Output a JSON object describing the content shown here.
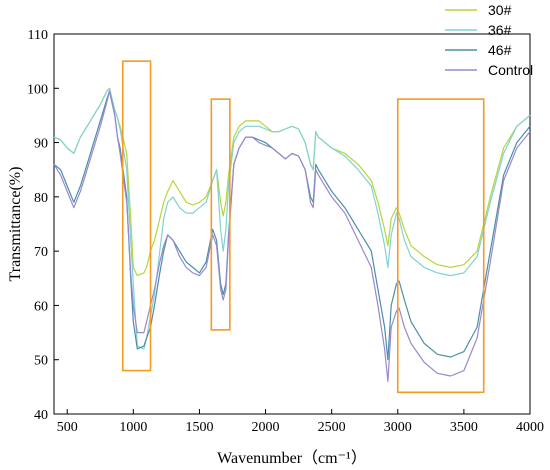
{
  "chart_data": {
    "type": "line",
    "xlabel": "Wavenumber（cm⁻¹）",
    "ylabel": "Transmittance(%)",
    "xlim": [
      400,
      4000
    ],
    "ylim": [
      40,
      110
    ],
    "xticks": [
      500,
      1000,
      1500,
      2000,
      2500,
      3000,
      3500,
      4000
    ],
    "yticks": [
      40,
      50,
      60,
      70,
      80,
      90,
      100,
      110
    ],
    "grid": false,
    "legend_position": "top-right",
    "series": [
      {
        "name": "30#",
        "color": "#b5d63a",
        "points": [
          [
            400,
            91
          ],
          [
            450,
            90.5
          ],
          [
            500,
            89
          ],
          [
            550,
            88
          ],
          [
            600,
            91
          ],
          [
            650,
            93
          ],
          [
            700,
            95
          ],
          [
            750,
            97
          ],
          [
            800,
            99.5
          ],
          [
            820,
            100
          ],
          [
            860,
            96
          ],
          [
            880,
            94.5
          ],
          [
            900,
            93
          ],
          [
            950,
            88
          ],
          [
            980,
            76
          ],
          [
            1000,
            67
          ],
          [
            1030,
            65.5
          ],
          [
            1080,
            66
          ],
          [
            1100,
            67
          ],
          [
            1130,
            70
          ],
          [
            1160,
            72
          ],
          [
            1200,
            76
          ],
          [
            1230,
            79
          ],
          [
            1260,
            81
          ],
          [
            1300,
            83
          ],
          [
            1350,
            81
          ],
          [
            1400,
            79
          ],
          [
            1450,
            78.5
          ],
          [
            1500,
            79
          ],
          [
            1550,
            80
          ],
          [
            1600,
            83
          ],
          [
            1630,
            85
          ],
          [
            1660,
            79
          ],
          [
            1680,
            76.5
          ],
          [
            1700,
            79
          ],
          [
            1720,
            84
          ],
          [
            1760,
            91
          ],
          [
            1800,
            93
          ],
          [
            1850,
            94
          ],
          [
            1900,
            94
          ],
          [
            1950,
            94
          ],
          [
            2000,
            93
          ],
          [
            2050,
            92
          ],
          [
            2100,
            92
          ],
          [
            2150,
            92.5
          ],
          [
            2200,
            93
          ],
          [
            2250,
            92.5
          ],
          [
            2300,
            90
          ],
          [
            2340,
            86
          ],
          [
            2360,
            85
          ],
          [
            2380,
            92
          ],
          [
            2400,
            91
          ],
          [
            2500,
            89
          ],
          [
            2600,
            88
          ],
          [
            2700,
            86
          ],
          [
            2800,
            83
          ],
          [
            2850,
            79
          ],
          [
            2900,
            74
          ],
          [
            2925,
            71
          ],
          [
            2950,
            76
          ],
          [
            2990,
            78
          ],
          [
            3010,
            77
          ],
          [
            3050,
            74
          ],
          [
            3100,
            71
          ],
          [
            3200,
            69
          ],
          [
            3300,
            67.5
          ],
          [
            3400,
            67
          ],
          [
            3500,
            67.5
          ],
          [
            3600,
            70
          ],
          [
            3700,
            80
          ],
          [
            3800,
            89
          ],
          [
            3900,
            93
          ],
          [
            4000,
            95
          ]
        ]
      },
      {
        "name": "36#",
        "color": "#7fd3d3",
        "points": [
          [
            400,
            91
          ],
          [
            450,
            90.5
          ],
          [
            500,
            89
          ],
          [
            550,
            88
          ],
          [
            600,
            91
          ],
          [
            650,
            93
          ],
          [
            700,
            95
          ],
          [
            750,
            97
          ],
          [
            800,
            99.5
          ],
          [
            820,
            100
          ],
          [
            860,
            96
          ],
          [
            880,
            94.5
          ],
          [
            900,
            92.5
          ],
          [
            950,
            85
          ],
          [
            980,
            72
          ],
          [
            1000,
            64
          ],
          [
            1030,
            52.5
          ],
          [
            1080,
            52
          ],
          [
            1100,
            54
          ],
          [
            1130,
            58
          ],
          [
            1160,
            62
          ],
          [
            1200,
            70
          ],
          [
            1230,
            76
          ],
          [
            1260,
            79
          ],
          [
            1300,
            80
          ],
          [
            1350,
            78
          ],
          [
            1400,
            77
          ],
          [
            1450,
            77
          ],
          [
            1500,
            78
          ],
          [
            1550,
            79
          ],
          [
            1600,
            83
          ],
          [
            1630,
            85
          ],
          [
            1660,
            74
          ],
          [
            1680,
            70
          ],
          [
            1700,
            74
          ],
          [
            1720,
            82
          ],
          [
            1760,
            90
          ],
          [
            1800,
            92
          ],
          [
            1850,
            93
          ],
          [
            1900,
            93
          ],
          [
            1950,
            93
          ],
          [
            2000,
            92.5
          ],
          [
            2050,
            92
          ],
          [
            2100,
            92
          ],
          [
            2150,
            92.5
          ],
          [
            2200,
            93
          ],
          [
            2250,
            92.5
          ],
          [
            2300,
            90
          ],
          [
            2340,
            86
          ],
          [
            2360,
            85
          ],
          [
            2380,
            92
          ],
          [
            2400,
            91
          ],
          [
            2500,
            89
          ],
          [
            2600,
            87.5
          ],
          [
            2700,
            85
          ],
          [
            2800,
            82
          ],
          [
            2850,
            77
          ],
          [
            2900,
            71
          ],
          [
            2925,
            67
          ],
          [
            2950,
            73
          ],
          [
            2990,
            77
          ],
          [
            3010,
            76
          ],
          [
            3050,
            72
          ],
          [
            3100,
            69
          ],
          [
            3200,
            67
          ],
          [
            3300,
            66
          ],
          [
            3400,
            65.5
          ],
          [
            3500,
            66
          ],
          [
            3600,
            69
          ],
          [
            3700,
            79
          ],
          [
            3800,
            88
          ],
          [
            3900,
            93
          ],
          [
            4000,
            95
          ]
        ]
      },
      {
        "name": "46#",
        "color": "#4a8fa8",
        "points": [
          [
            400,
            86
          ],
          [
            450,
            85
          ],
          [
            500,
            82
          ],
          [
            550,
            79
          ],
          [
            600,
            82
          ],
          [
            650,
            86
          ],
          [
            700,
            90
          ],
          [
            750,
            94
          ],
          [
            800,
            98
          ],
          [
            820,
            99.5
          ],
          [
            860,
            95
          ],
          [
            880,
            91
          ],
          [
            900,
            89
          ],
          [
            950,
            80
          ],
          [
            980,
            65
          ],
          [
            1000,
            57
          ],
          [
            1030,
            52
          ],
          [
            1080,
            52.5
          ],
          [
            1100,
            54
          ],
          [
            1130,
            56
          ],
          [
            1160,
            60
          ],
          [
            1200,
            66
          ],
          [
            1230,
            70
          ],
          [
            1260,
            73
          ],
          [
            1300,
            72
          ],
          [
            1350,
            70
          ],
          [
            1400,
            68
          ],
          [
            1450,
            67
          ],
          [
            1500,
            66
          ],
          [
            1550,
            68
          ],
          [
            1600,
            74
          ],
          [
            1630,
            72
          ],
          [
            1660,
            64
          ],
          [
            1680,
            62
          ],
          [
            1700,
            64
          ],
          [
            1720,
            73
          ],
          [
            1760,
            86
          ],
          [
            1800,
            89
          ],
          [
            1850,
            91
          ],
          [
            1900,
            91
          ],
          [
            1950,
            90.5
          ],
          [
            2000,
            90
          ],
          [
            2050,
            89
          ],
          [
            2100,
            88
          ],
          [
            2150,
            87
          ],
          [
            2200,
            88
          ],
          [
            2250,
            87.5
          ],
          [
            2300,
            85
          ],
          [
            2340,
            80
          ],
          [
            2360,
            79
          ],
          [
            2380,
            86
          ],
          [
            2400,
            85
          ],
          [
            2500,
            81
          ],
          [
            2600,
            78
          ],
          [
            2700,
            74
          ],
          [
            2800,
            70
          ],
          [
            2850,
            63
          ],
          [
            2900,
            56
          ],
          [
            2925,
            50
          ],
          [
            2950,
            60
          ],
          [
            2990,
            64
          ],
          [
            3010,
            64.5
          ],
          [
            3050,
            61
          ],
          [
            3100,
            57
          ],
          [
            3200,
            53
          ],
          [
            3300,
            51
          ],
          [
            3400,
            50.5
          ],
          [
            3500,
            51.5
          ],
          [
            3600,
            56
          ],
          [
            3700,
            70
          ],
          [
            3800,
            84
          ],
          [
            3900,
            90
          ],
          [
            4000,
            93
          ]
        ]
      },
      {
        "name": "Control",
        "color": "#9a88cf",
        "points": [
          [
            400,
            86
          ],
          [
            450,
            84
          ],
          [
            500,
            81
          ],
          [
            550,
            78
          ],
          [
            600,
            81
          ],
          [
            650,
            85
          ],
          [
            700,
            89
          ],
          [
            750,
            93
          ],
          [
            800,
            97.5
          ],
          [
            820,
            99.5
          ],
          [
            860,
            95
          ],
          [
            880,
            91
          ],
          [
            900,
            88
          ],
          [
            950,
            79
          ],
          [
            980,
            66
          ],
          [
            1000,
            60
          ],
          [
            1030,
            55
          ],
          [
            1080,
            55
          ],
          [
            1100,
            57
          ],
          [
            1130,
            60
          ],
          [
            1160,
            63
          ],
          [
            1200,
            68
          ],
          [
            1230,
            71
          ],
          [
            1260,
            73
          ],
          [
            1300,
            72
          ],
          [
            1350,
            69
          ],
          [
            1400,
            67
          ],
          [
            1450,
            66
          ],
          [
            1500,
            65.5
          ],
          [
            1550,
            67
          ],
          [
            1600,
            73
          ],
          [
            1630,
            71
          ],
          [
            1660,
            63
          ],
          [
            1680,
            61
          ],
          [
            1700,
            63
          ],
          [
            1720,
            72
          ],
          [
            1760,
            86
          ],
          [
            1800,
            89
          ],
          [
            1850,
            91
          ],
          [
            1900,
            91
          ],
          [
            1950,
            90
          ],
          [
            2000,
            89.5
          ],
          [
            2050,
            89
          ],
          [
            2100,
            88
          ],
          [
            2150,
            87
          ],
          [
            2200,
            88
          ],
          [
            2250,
            87.5
          ],
          [
            2300,
            85
          ],
          [
            2340,
            79
          ],
          [
            2360,
            78
          ],
          [
            2380,
            85
          ],
          [
            2400,
            84
          ],
          [
            2500,
            80
          ],
          [
            2600,
            77
          ],
          [
            2700,
            72
          ],
          [
            2800,
            67
          ],
          [
            2850,
            60
          ],
          [
            2900,
            52
          ],
          [
            2925,
            46
          ],
          [
            2950,
            56
          ],
          [
            2990,
            59
          ],
          [
            3010,
            59.5
          ],
          [
            3050,
            56
          ],
          [
            3100,
            53
          ],
          [
            3200,
            49.5
          ],
          [
            3300,
            47.5
          ],
          [
            3400,
            47
          ],
          [
            3500,
            48
          ],
          [
            3600,
            54
          ],
          [
            3700,
            68
          ],
          [
            3800,
            83
          ],
          [
            3900,
            89
          ],
          [
            4000,
            92
          ]
        ]
      }
    ],
    "highlight_boxes": [
      {
        "x": [
          920,
          1130
        ],
        "y": [
          48,
          105
        ],
        "color": "#f59a23"
      },
      {
        "x": [
          1590,
          1730
        ],
        "y": [
          55.5,
          98
        ],
        "color": "#f59a23"
      },
      {
        "x": [
          3000,
          3650
        ],
        "y": [
          44,
          98
        ],
        "color": "#f59a23"
      }
    ]
  }
}
